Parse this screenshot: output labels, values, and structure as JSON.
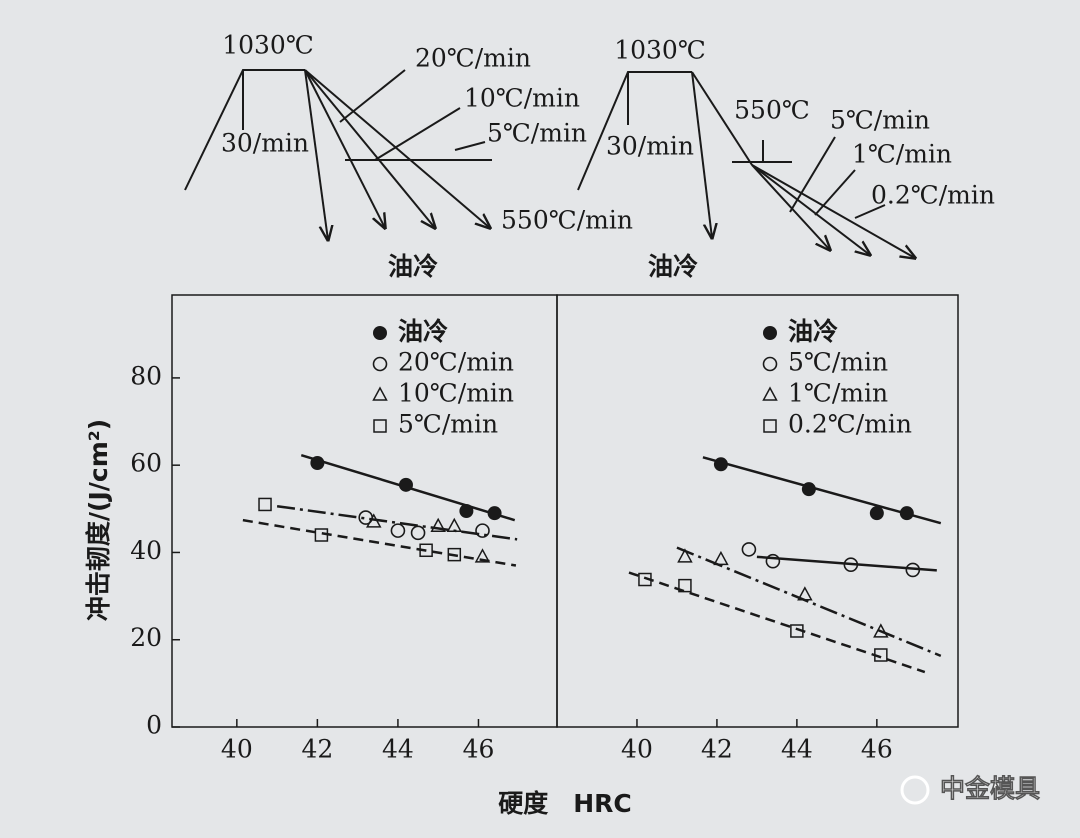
{
  "diagrams": [
    {
      "peak": "1030℃",
      "hold_rate": "30/min",
      "rates": [
        "20℃/min",
        "10℃/min",
        "5℃/min",
        "550℃/min"
      ],
      "quench": "油冷"
    },
    {
      "peak": "1030℃",
      "hold_rate": "30/min",
      "step": "550℃",
      "rates": [
        "5℃/min",
        "1℃/min",
        "0.2℃/min"
      ],
      "quench": "油冷"
    }
  ],
  "x_label": "硬度　HRC",
  "watermark": "中金模具",
  "chart_data": [
    {
      "type": "scatter",
      "ylabel": "冲击韧度/(J/cm²)",
      "xlim": [
        38.39,
        47.95
      ],
      "ylim": [
        0,
        99
      ],
      "xticks": [
        40,
        42,
        44,
        46
      ],
      "yticks": [
        0,
        20,
        40,
        60,
        80
      ],
      "color": "#1a1a1a",
      "series": [
        {
          "name": "油冷",
          "marker": "filled-circle",
          "x": [
            42,
            44.2,
            45.7,
            46.4
          ],
          "values": [
            60.5,
            55.5,
            49.5,
            49
          ],
          "line_style": "solid",
          "line_x": [
            41.6,
            46.9
          ],
          "line_y": [
            62.3,
            47.4
          ]
        },
        {
          "name": "20℃/min",
          "marker": "circle",
          "x": [
            43.2,
            44,
            44.5,
            46.1
          ],
          "values": [
            48,
            45,
            44.5,
            45
          ],
          "line_style": "dashdot",
          "line_x": [
            41.0,
            46.96
          ],
          "line_y": [
            50.6,
            43
          ]
        },
        {
          "name": "10℃/min",
          "marker": "triangle",
          "x": [
            43.4,
            45,
            45.4,
            46.1
          ],
          "values": [
            47,
            46,
            46,
            39
          ]
        },
        {
          "name": "5℃/min",
          "marker": "square",
          "x": [
            40.7,
            42.1,
            44.7,
            45.4
          ],
          "values": [
            51,
            44,
            40.5,
            39.5
          ],
          "line_style": "dashed",
          "line_x": [
            40.15,
            46.93
          ],
          "line_y": [
            47.4,
            37
          ]
        }
      ]
    },
    {
      "type": "scatter",
      "xlim": [
        38,
        48.03
      ],
      "ylim": [
        0,
        99
      ],
      "xticks": [
        40,
        42,
        44,
        46
      ],
      "color": "#1a1a1a",
      "series": [
        {
          "name": "油冷",
          "marker": "filled-circle",
          "x": [
            42.1,
            44.3,
            46.0,
            46.75
          ],
          "values": [
            60.2,
            54.5,
            49,
            49
          ],
          "line_style": "solid",
          "line_x": [
            41.65,
            47.6
          ],
          "line_y": [
            61.8,
            46.7
          ]
        },
        {
          "name": "5℃/min",
          "marker": "circle",
          "x": [
            42.8,
            43.4,
            45.35,
            46.9
          ],
          "values": [
            40.7,
            38,
            37.2,
            36
          ],
          "line_style": "solid",
          "line_x": [
            43.0,
            47.5
          ],
          "line_y": [
            39,
            35.9
          ]
        },
        {
          "name": "1℃/min",
          "marker": "triangle",
          "x": [
            41.2,
            42.1,
            44.2,
            46.1
          ],
          "values": [
            39,
            38.4,
            30.3,
            21.8
          ],
          "line_style": "dashdot",
          "line_x": [
            41.0,
            47.6
          ],
          "line_y": [
            41.1,
            16.3
          ]
        },
        {
          "name": "0.2℃/min",
          "marker": "square",
          "x": [
            40.2,
            41.2,
            44.0,
            46.1
          ],
          "values": [
            33.8,
            32.4,
            22,
            16.5
          ],
          "line_style": "dashed",
          "line_x": [
            39.8,
            47.2
          ],
          "line_y": [
            35.4,
            12.6
          ]
        }
      ]
    }
  ]
}
